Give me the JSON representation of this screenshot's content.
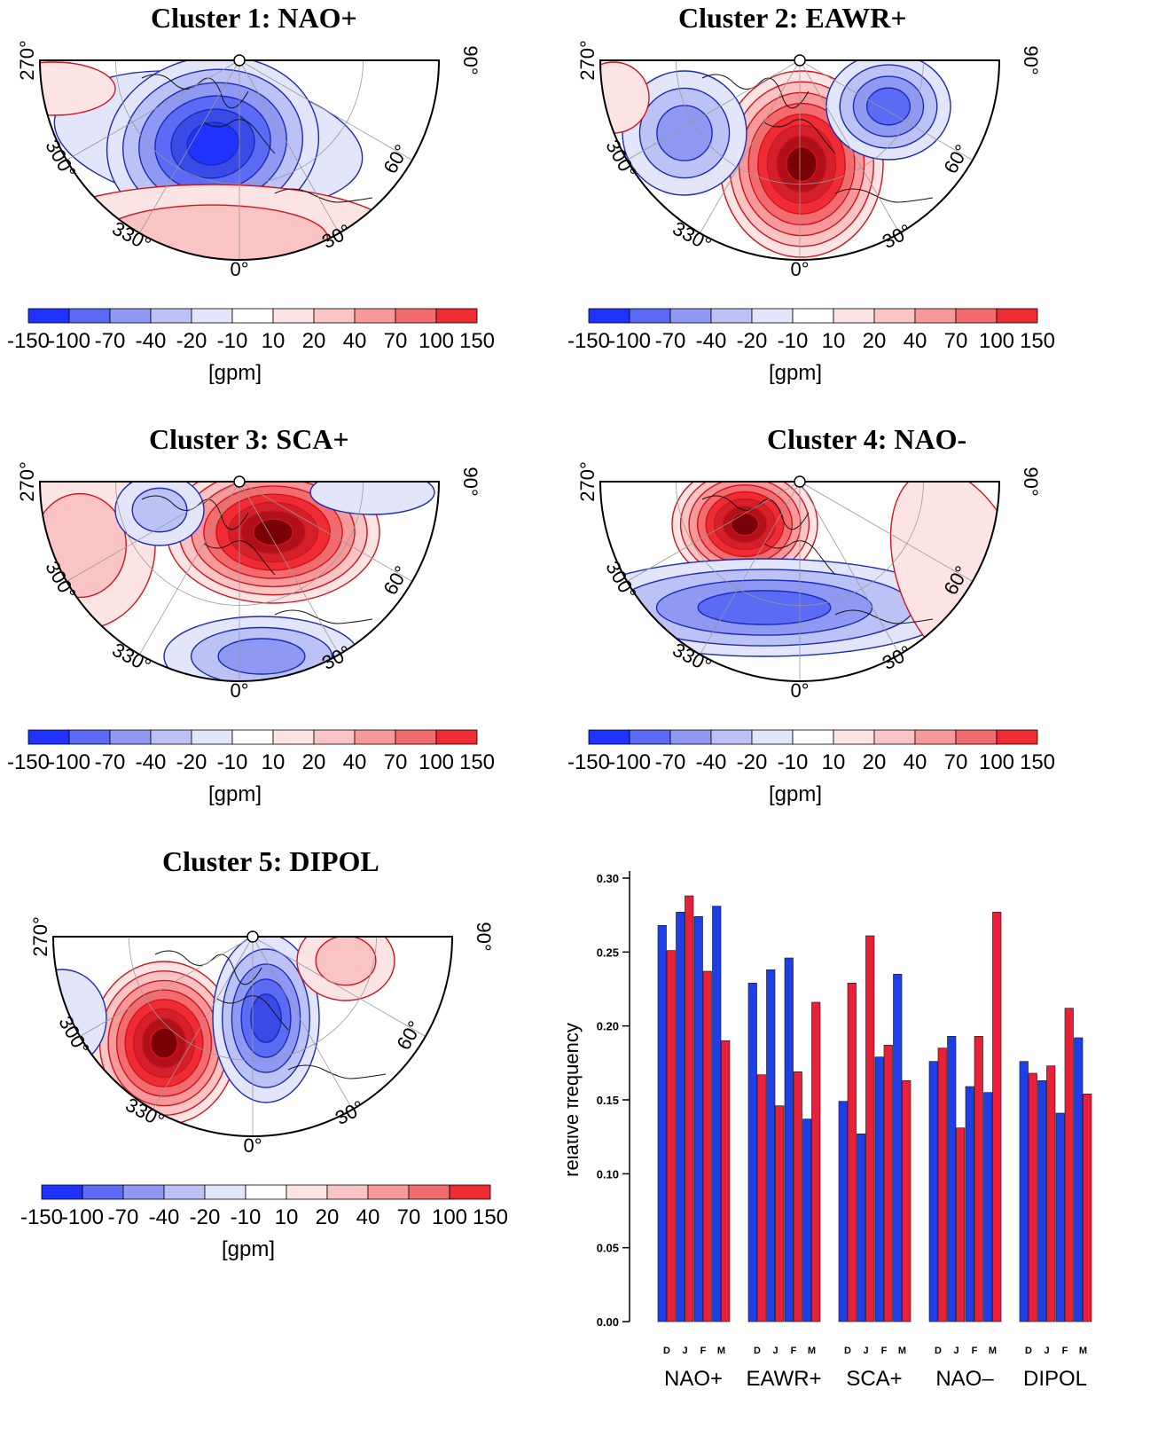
{
  "colorbar": {
    "labels": [
      "-150",
      "-100",
      "-70",
      "-40",
      "-20",
      "-10",
      "10",
      "20",
      "40",
      "70",
      "100",
      "150"
    ],
    "colors": [
      "#1f32ff",
      "#5b6bf5",
      "#8f98f2",
      "#bcc2f5",
      "#e3e5fa",
      "#ffffff",
      "#fde4e4",
      "#fbc4c4",
      "#f7999b",
      "#f26b6f",
      "#ef2b33"
    ],
    "unit": "[gpm]"
  },
  "maps": [
    {
      "title": "Cluster 1: NAO+",
      "deg": {
        "d270": "270°",
        "d300": "300°",
        "d330": "330°",
        "d0": "0°",
        "d30": "30°",
        "d60": "60°",
        "d90": "90°"
      }
    },
    {
      "title": "Cluster 2: EAWR+",
      "deg": {
        "d270": "270°",
        "d300": "300°",
        "d330": "330°",
        "d0": "0°",
        "d30": "30°",
        "d60": "60°",
        "d90": "90°"
      }
    },
    {
      "title": "Cluster 3: SCA+",
      "deg": {
        "d270": "270°",
        "d300": "300°",
        "d330": "330°",
        "d0": "0°",
        "d30": "30°",
        "d60": "60°",
        "d90": "90°"
      }
    },
    {
      "title": "Cluster 4: NAO-",
      "deg": {
        "d270": "270°",
        "d300": "300°",
        "d330": "330°",
        "d0": "0°",
        "d30": "30°",
        "d60": "60°",
        "d90": "90°"
      }
    },
    {
      "title": "Cluster 5: DIPOL",
      "deg": {
        "d270": "270°",
        "d300": "300°",
        "d330": "330°",
        "d0": "0°",
        "d30": "30°",
        "d60": "60°",
        "d90": "90°"
      }
    }
  ],
  "chart_data": {
    "type": "bar",
    "ylabel": "relative frequency",
    "ylim": [
      0,
      0.3
    ],
    "yticks": [
      "0.00",
      "0.05",
      "0.10",
      "0.15",
      "0.20",
      "0.25",
      "0.30"
    ],
    "categories": [
      "NAO+",
      "EAWR+",
      "SCA+",
      "NAO–",
      "DIPOL"
    ],
    "months": [
      "D",
      "J",
      "F",
      "M"
    ],
    "series_colors": [
      "#1f3fe6",
      "#e8203a"
    ],
    "values": [
      [
        [
          0.268,
          0.251
        ],
        [
          0.277,
          0.288
        ],
        [
          0.274,
          0.237
        ],
        [
          0.281,
          0.19
        ]
      ],
      [
        [
          0.229,
          0.167
        ],
        [
          0.238,
          0.146
        ],
        [
          0.246,
          0.169
        ],
        [
          0.137,
          0.216
        ]
      ],
      [
        [
          0.149,
          0.229
        ],
        [
          0.127,
          0.261
        ],
        [
          0.179,
          0.187
        ],
        [
          0.235,
          0.163
        ]
      ],
      [
        [
          0.176,
          0.185
        ],
        [
          0.193,
          0.131
        ],
        [
          0.159,
          0.193
        ],
        [
          0.155,
          0.277
        ]
      ],
      [
        [
          0.176,
          0.168
        ],
        [
          0.163,
          0.173
        ],
        [
          0.141,
          0.212
        ],
        [
          0.192,
          0.154
        ]
      ]
    ]
  }
}
